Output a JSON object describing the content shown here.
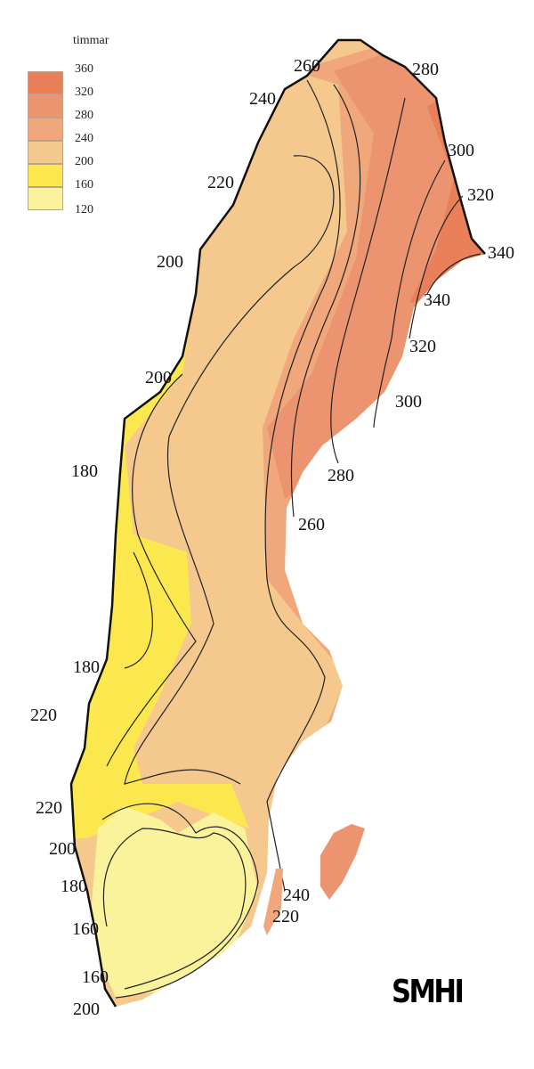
{
  "legend": {
    "unit": "timmar",
    "ticks": [
      "360",
      "320",
      "280",
      "240",
      "200",
      "160",
      "120"
    ],
    "colors": [
      "#e9805a",
      "#ec9370",
      "#f0a77c",
      "#f5c98e",
      "#fbe84f",
      "#fbf29c"
    ]
  },
  "isolines": [
    "260",
    "280",
    "240",
    "300",
    "220",
    "320",
    "340",
    "200",
    "340",
    "320",
    "200",
    "300",
    "180",
    "280",
    "260",
    "180",
    "220",
    "220",
    "200",
    "180",
    "240",
    "220",
    "160",
    "160",
    "200"
  ],
  "logo": "SMHI"
}
